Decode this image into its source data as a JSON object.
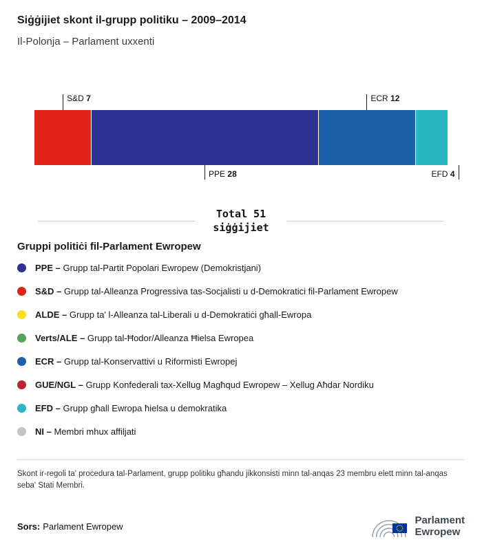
{
  "page": {
    "title": "Siġġijiet skont il-grupp politiku – 2009–2014",
    "subtitle": "Il-Polonja – Parlament uxxenti"
  },
  "chart_data": {
    "type": "bar",
    "variant": "stacked-horizontal",
    "title": "Siġġijiet skont il-grupp politiku – 2009–2014",
    "subtitle": "Il-Polonja – Parlament uxxenti",
    "total": 51,
    "unit": "siġġijiet",
    "segments": [
      {
        "group": "S&D",
        "seats": 7,
        "color": "#e2231a",
        "label_position": "top",
        "label_align": "start"
      },
      {
        "group": "PPE",
        "seats": 28,
        "color": "#2e3192",
        "label_position": "bottom",
        "label_align": "start"
      },
      {
        "group": "ECR",
        "seats": 12,
        "color": "#1c5fa6",
        "label_position": "top",
        "label_align": "start"
      },
      {
        "group": "EFD",
        "seats": 4,
        "color": "#29b7c4",
        "label_position": "bottom",
        "label_align": "end"
      }
    ]
  },
  "total": {
    "line1": "Total 51",
    "line2": "siġġijiet"
  },
  "legend": {
    "heading": "Gruppi politiċi fil-Parlament Ewropew",
    "items": [
      {
        "abbr": "PPE –",
        "desc": "Grupp tal-Partit Popolari Ewropew (Demokristjani)",
        "color": "#2e3192"
      },
      {
        "abbr": "S&D –",
        "desc": "Grupp tal-Alleanza Progressiva tas-Socjalisti u d-Demokratici fil-Parlament Ewropew",
        "color": "#e2231a"
      },
      {
        "abbr": "ALDE –",
        "desc": "Grupp ta' l-Alleanza tal-Liberali u d-Demokratiċi għall-Ewropa",
        "color": "#f5e21d"
      },
      {
        "abbr": "Verts/ALE –",
        "desc": "Grupp tal-Ħodor/Alleanza Ħielsa Ewropea",
        "color": "#55a457"
      },
      {
        "abbr": "ECR –",
        "desc": "Grupp tal-Konservattivi u Riformisti Ewropej",
        "color": "#1c5fa6"
      },
      {
        "abbr": "GUE/NGL –",
        "desc": "Grupp Konfederali tax-Xellug Magħqud Ewropew – Xellug Aħdar Nordiku",
        "color": "#bb252b"
      },
      {
        "abbr": "EFD –",
        "desc": "Grupp għall Ewropa ħielsa u demokratika",
        "color": "#29b7c4"
      },
      {
        "abbr": "NI –",
        "desc": "Membri mhux affiljati",
        "color": "#c4c4c4"
      }
    ]
  },
  "footnote": "Skont ir-regoli ta' proċedura tal-Parlament, grupp politiku għandu jikkonsisti minn tal-anqas 23 membru elett minn tal-anqas seba' Stati Membri.",
  "source": {
    "label": "Sors:",
    "value": "Parlament Ewropew"
  },
  "logo": {
    "line1": "Parlament",
    "line2": "Ewropew"
  }
}
